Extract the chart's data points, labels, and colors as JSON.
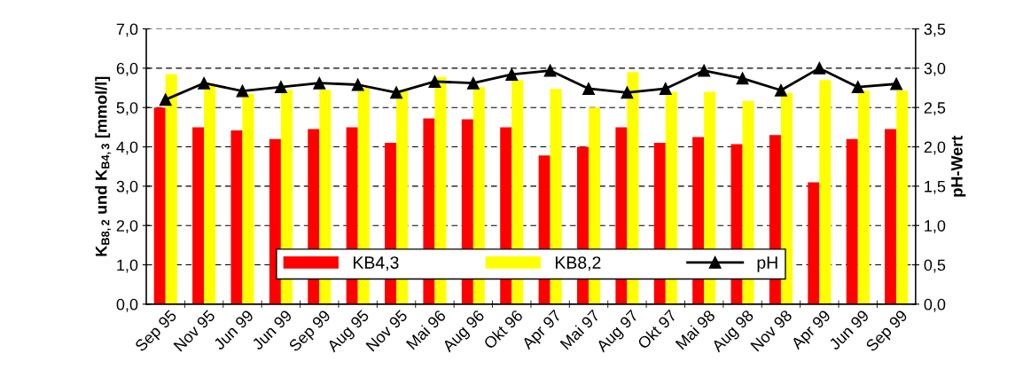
{
  "chart_data": {
    "type": "bar",
    "ylabel": "K$_{B8,2}$ und K$_{B4,3}$ [mmol/l]",
    "y2label": "pH-Wert",
    "categories": [
      "Sep 95",
      "Nov 95",
      "Jun 99",
      "Jun 99",
      "Sep 99",
      "Aug 95",
      "Nov 95",
      "Mai 96",
      "Aug 96",
      "Okt 96",
      "Apr 97",
      "Mai 97",
      "Aug 97",
      "Okt 97",
      "Mai 98",
      "Aug 98",
      "Nov 98",
      "Apr 99",
      "Jun 99",
      "Sep 99"
    ],
    "series": [
      {
        "name": "KB4,3",
        "color": "#ff0000",
        "values": [
          5.0,
          4.5,
          4.42,
          4.2,
          4.45,
          4.5,
          4.1,
          4.72,
          4.7,
          4.5,
          3.78,
          4.0,
          4.5,
          4.1,
          4.25,
          4.07,
          4.3,
          3.1,
          4.2,
          4.45
        ]
      },
      {
        "name": "KB8,2",
        "color": "#ffff00",
        "values": [
          5.85,
          5.6,
          5.35,
          5.45,
          5.45,
          5.5,
          5.45,
          5.78,
          5.52,
          5.7,
          5.47,
          5.0,
          5.9,
          5.4,
          5.4,
          5.17,
          5.37,
          5.7,
          5.43,
          5.43
        ]
      },
      {
        "name": "pH",
        "type": "line",
        "axis": "y2",
        "color": "#000000",
        "marker": "triangle",
        "values": [
          2.6,
          2.81,
          2.71,
          2.76,
          2.81,
          2.79,
          2.69,
          2.83,
          2.81,
          2.92,
          2.97,
          2.74,
          2.69,
          2.74,
          2.97,
          2.87,
          2.72,
          3.0,
          2.76,
          2.8
        ]
      }
    ],
    "ylim": [
      0,
      7
    ],
    "yticks": [
      {
        "value": 0,
        "label": "0,0"
      },
      {
        "value": 1,
        "label": "1,0"
      },
      {
        "value": 2,
        "label": "2,0"
      },
      {
        "value": 3,
        "label": "3,0"
      },
      {
        "value": 4,
        "label": "4,0"
      },
      {
        "value": 5,
        "label": "5,0"
      },
      {
        "value": 6,
        "label": "6,0"
      },
      {
        "value": 7,
        "label": "7,0"
      }
    ],
    "y2lim": [
      0,
      3.5
    ],
    "y2ticks": [
      {
        "value": 0,
        "label": "0,0"
      },
      {
        "value": 0.5,
        "label": "0,5"
      },
      {
        "value": 1,
        "label": "1,0"
      },
      {
        "value": 1.5,
        "label": "1,5"
      },
      {
        "value": 2,
        "label": "2,0"
      },
      {
        "value": 2.5,
        "label": "2,5"
      },
      {
        "value": 3,
        "label": "3,0"
      },
      {
        "value": 3.5,
        "label": "3,5"
      }
    ],
    "grid": "y",
    "legend": "bottom"
  }
}
